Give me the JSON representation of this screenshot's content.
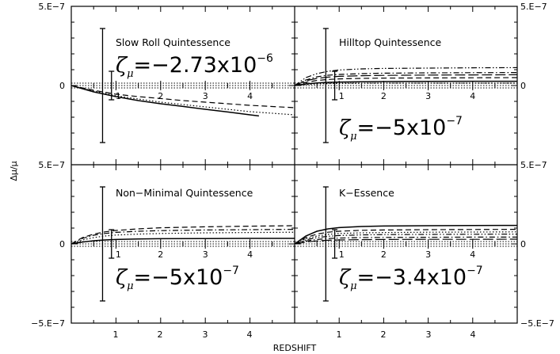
{
  "figure": {
    "xlabel": "REDSHIFT",
    "ylabel": "Δμ/μ",
    "y_ticks_left_top": [
      "5.E−7",
      "0"
    ],
    "y_ticks_left_bottom": [
      "5.E−7",
      "0",
      "−5.E−7"
    ],
    "y_ticks_right_top": [
      "5.E−7",
      "0"
    ],
    "y_ticks_right_bottom": [
      "5.E−7",
      "0",
      "−5.E−7"
    ],
    "x_ticks": [
      "1",
      "2",
      "3",
      "4"
    ],
    "colors": {
      "axes": "#000000",
      "background": "#ffffff"
    }
  },
  "chart_data": [
    {
      "type": "line",
      "title": "Slow Roll Quintessence",
      "annotation": {
        "symbol": "ζ",
        "subscript": "μ",
        "text": "=−2.73x10",
        "exponent": "−6"
      },
      "xlim": [
        0,
        5
      ],
      "ylim": [
        -5e-07,
        5e-07
      ],
      "error_bars": [
        {
          "x": 0.7,
          "low": -3.6e-07,
          "high": 3.6e-07
        },
        {
          "x": 0.9,
          "low": -9e-08,
          "high": 9e-08
        }
      ],
      "series": [
        {
          "style": "solid",
          "x": [
            0,
            0.5,
            1,
            1.5,
            2,
            2.5,
            3,
            3.5,
            4,
            4.2
          ],
          "y": [
            0,
            -4e-08,
            -7e-08,
            -9.5e-08,
            -1.15e-07,
            -1.32e-07,
            -1.5e-07,
            -1.67e-07,
            -1.85e-07,
            -1.92e-07
          ]
        },
        {
          "style": "dashed",
          "x": [
            0,
            0.5,
            1,
            1.5,
            2,
            2.5,
            3,
            3.5,
            4,
            5
          ],
          "y": [
            0,
            -3e-08,
            -5.5e-08,
            -7e-08,
            -8.2e-08,
            -9.5e-08,
            -1.05e-07,
            -1.15e-07,
            -1.25e-07,
            -1.4e-07
          ]
        },
        {
          "style": "dotted",
          "x": [
            0,
            0.5,
            1,
            1.5,
            2,
            2.5,
            3,
            3.5,
            4,
            5
          ],
          "y": [
            0,
            -3.5e-08,
            -6.5e-08,
            -8.5e-08,
            -1.05e-07,
            -1.2e-07,
            -1.35e-07,
            -1.5e-07,
            -1.65e-07,
            -1.85e-07
          ]
        }
      ]
    },
    {
      "type": "line",
      "title": "Hilltop Quintessence",
      "annotation": {
        "symbol": "ζ",
        "subscript": "μ",
        "text": "=−5x10",
        "exponent": "−7"
      },
      "xlim": [
        0,
        5
      ],
      "ylim": [
        -5e-07,
        5e-07
      ],
      "error_bars": [
        {
          "x": 0.7,
          "low": -3.6e-07,
          "high": 3.6e-07
        },
        {
          "x": 0.9,
          "low": -9e-08,
          "high": 9e-08
        }
      ],
      "series": [
        {
          "style": "dash-dot-dot",
          "x": [
            0,
            0.25,
            0.5,
            0.75,
            1,
            1.5,
            2,
            3,
            4,
            5
          ],
          "y": [
            0,
            5e-08,
            7.5e-08,
            9e-08,
            9.8e-08,
            1.05e-07,
            1.08e-07,
            1.1e-07,
            1.12e-07,
            1.13e-07
          ]
        },
        {
          "style": "dash-dot",
          "x": [
            0,
            0.25,
            0.5,
            0.75,
            1,
            1.5,
            2,
            3,
            4,
            5
          ],
          "y": [
            0,
            3.5e-08,
            5.5e-08,
            6.5e-08,
            7e-08,
            7.5e-08,
            7.8e-08,
            8e-08,
            8.1e-08,
            8.2e-08
          ]
        },
        {
          "style": "long-dash",
          "x": [
            0,
            0.25,
            0.5,
            0.75,
            1,
            1.5,
            2,
            3,
            4,
            5
          ],
          "y": [
            0,
            3e-08,
            4.5e-08,
            5.3e-08,
            5.8e-08,
            6.2e-08,
            6.4e-08,
            6.6e-08,
            6.7e-08,
            6.8e-08
          ]
        },
        {
          "style": "dashed",
          "x": [
            0,
            0.25,
            0.5,
            0.75,
            1,
            1.5,
            2,
            3,
            4,
            5
          ],
          "y": [
            0,
            2e-08,
            3.2e-08,
            3.8e-08,
            4.2e-08,
            4.5e-08,
            4.7e-08,
            4.8e-08,
            4.9e-08,
            5e-08
          ]
        },
        {
          "style": "solid",
          "x": [
            0,
            0.25,
            0.5,
            0.75,
            1,
            1.5,
            2,
            3,
            4,
            5
          ],
          "y": [
            0,
            1e-08,
            1.6e-08,
            2e-08,
            2.2e-08,
            2.4e-08,
            2.5e-08,
            2.6e-08,
            2.7e-08,
            2.7e-08
          ]
        },
        {
          "style": "dotted",
          "x": [
            0,
            0.25,
            0.5,
            0.75,
            1,
            1.5,
            2,
            3,
            4,
            5
          ],
          "y": [
            0,
            6e-09,
            1e-08,
            1.2e-08,
            1.3e-08,
            1.4e-08,
            1.5e-08,
            1.5e-08,
            1.5e-08,
            1.5e-08
          ]
        }
      ]
    },
    {
      "type": "line",
      "title": "Non−Minimal Quintessence",
      "annotation": {
        "symbol": "ζ",
        "subscript": "μ",
        "text": "=−5x10",
        "exponent": "−7"
      },
      "xlim": [
        0,
        5
      ],
      "ylim": [
        -5e-07,
        5e-07
      ],
      "error_bars": [
        {
          "x": 0.7,
          "low": -3.6e-07,
          "high": 3.6e-07
        },
        {
          "x": 0.9,
          "low": -9e-08,
          "high": 9e-08
        }
      ],
      "series": [
        {
          "style": "dashed",
          "x": [
            0,
            0.25,
            0.5,
            0.75,
            1,
            1.5,
            2,
            3,
            4,
            5
          ],
          "y": [
            0,
            4e-08,
            6.2e-08,
            7.6e-08,
            8.5e-08,
            9.5e-08,
            1.02e-07,
            1.08e-07,
            1.12e-07,
            1.15e-07
          ]
        },
        {
          "style": "dash-dot",
          "x": [
            0,
            0.25,
            0.5,
            0.75,
            1,
            1.5,
            2,
            3,
            4,
            5
          ],
          "y": [
            0,
            3.5e-08,
            5.5e-08,
            6.6e-08,
            7.3e-08,
            8e-08,
            8.4e-08,
            8.8e-08,
            9e-08,
            9.2e-08
          ]
        },
        {
          "style": "dotted",
          "x": [
            0,
            0.25,
            0.5,
            0.75,
            1,
            1.5,
            2,
            3,
            4,
            5
          ],
          "y": [
            0,
            2.5e-08,
            4e-08,
            5e-08,
            5.6e-08,
            6.2e-08,
            6.6e-08,
            7e-08,
            7.2e-08,
            7.4e-08
          ]
        },
        {
          "style": "solid",
          "x": [
            0,
            0.25,
            0.5,
            0.75,
            1,
            1.5,
            2,
            3,
            4,
            5
          ],
          "y": [
            0,
            1.2e-08,
            2e-08,
            2.5e-08,
            2.8e-08,
            3.1e-08,
            3.3e-08,
            3.4e-08,
            3.5e-08,
            3.5e-08
          ]
        }
      ]
    },
    {
      "type": "line",
      "title": "K−Essence",
      "annotation": {
        "symbol": "ζ",
        "subscript": "μ",
        "text": "=−3.4x10",
        "exponent": "−7"
      },
      "xlim": [
        0,
        5
      ],
      "ylim": [
        -5e-07,
        5e-07
      ],
      "error_bars": [
        {
          "x": 0.7,
          "low": -3.6e-07,
          "high": 3.6e-07
        },
        {
          "x": 0.9,
          "low": -9e-08,
          "high": 9e-08
        }
      ],
      "series": [
        {
          "style": "solid",
          "x": [
            0,
            0.25,
            0.5,
            0.75,
            1,
            1.5,
            2,
            3,
            4,
            5
          ],
          "y": [
            0,
            5e-08,
            8e-08,
            9.5e-08,
            1.03e-07,
            1.1e-07,
            1.13e-07,
            1.15e-07,
            1.16e-07,
            1.17e-07
          ]
        },
        {
          "style": "dashed",
          "x": [
            0,
            0.25,
            0.5,
            0.75,
            1,
            1.5,
            2,
            3,
            4,
            5
          ],
          "y": [
            0,
            4e-08,
            6.2e-08,
            7.4e-08,
            8e-08,
            8.6e-08,
            8.8e-08,
            9e-08,
            9.1e-08,
            9.2e-08
          ]
        },
        {
          "style": "dotted",
          "x": [
            0,
            0.25,
            0.5,
            0.75,
            1,
            1.5,
            2,
            3,
            4,
            5
          ],
          "y": [
            0,
            3.2e-08,
            5e-08,
            6e-08,
            6.6e-08,
            7e-08,
            7.2e-08,
            7.4e-08,
            7.5e-08,
            7.6e-08
          ]
        },
        {
          "style": "dash-dot-dot",
          "x": [
            0,
            0.25,
            0.5,
            0.75,
            1,
            1.5,
            2,
            3,
            4,
            5
          ],
          "y": [
            0,
            2.5e-08,
            4e-08,
            4.8e-08,
            5.3e-08,
            5.7e-08,
            5.9e-08,
            6e-08,
            6.1e-08,
            6.2e-08
          ]
        },
        {
          "style": "dash-dot",
          "x": [
            0,
            0.25,
            0.5,
            0.75,
            1,
            1.5,
            2,
            3,
            4,
            5
          ],
          "y": [
            0,
            1.8e-08,
            2.8e-08,
            3.4e-08,
            3.7e-08,
            4e-08,
            4.1e-08,
            4.2e-08,
            4.3e-08,
            4.3e-08
          ]
        },
        {
          "style": "long-dash",
          "x": [
            0,
            0.25,
            0.5,
            0.75,
            1,
            1.5,
            2,
            3,
            4,
            5
          ],
          "y": [
            0,
            1.2e-08,
            1.9e-08,
            2.3e-08,
            2.5e-08,
            2.7e-08,
            2.8e-08,
            2.9e-08,
            2.9e-08,
            3e-08
          ]
        }
      ]
    }
  ]
}
